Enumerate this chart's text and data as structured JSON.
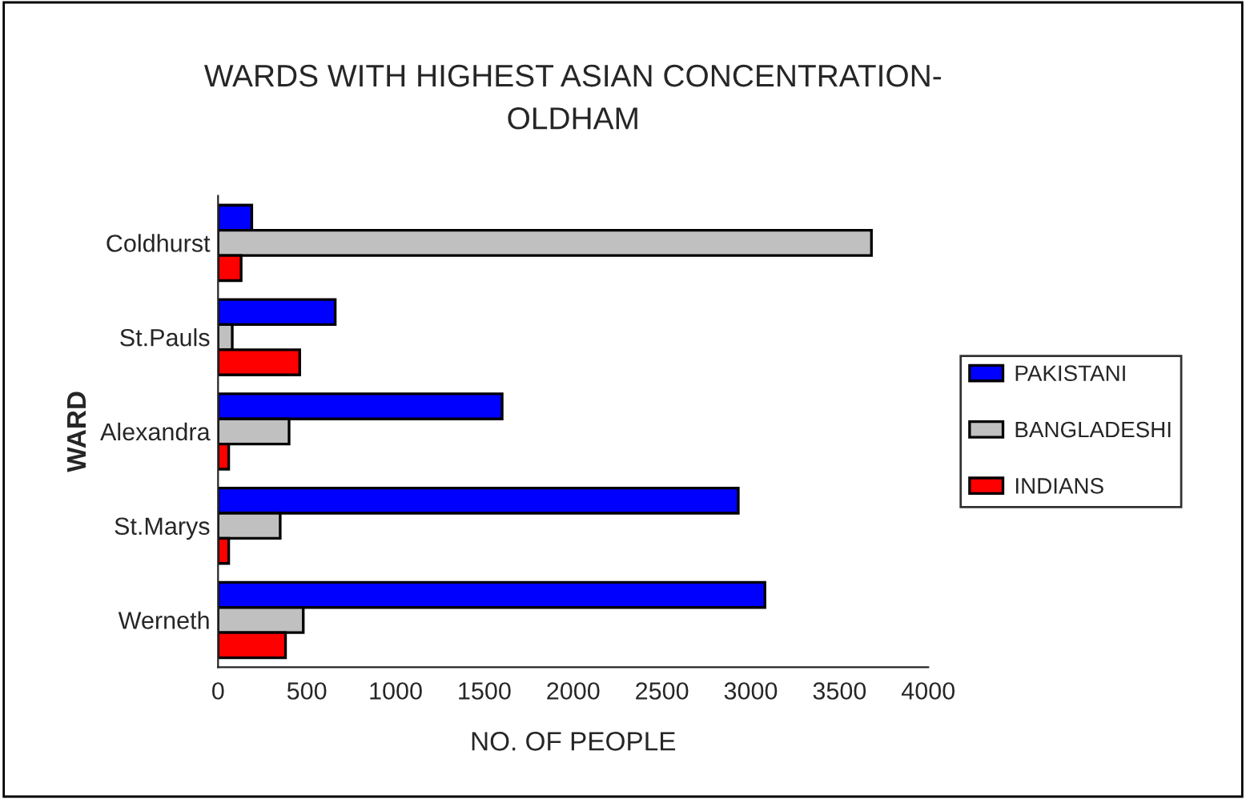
{
  "chart_data": {
    "type": "bar",
    "orientation": "horizontal",
    "title": "WARDS WITH HIGHEST ASIAN CONCENTRATION-\nOLDHAM",
    "xlabel": "NO. OF PEOPLE",
    "ylabel": "WARD",
    "categories": [
      "Coldhurst",
      "St.Pauls",
      "Alexandra",
      "St.Marys",
      "Werneth"
    ],
    "series": [
      {
        "name": "PAKISTANI",
        "color": "#0000ff",
        "values": [
          190,
          660,
          1600,
          2930,
          3080
        ]
      },
      {
        "name": "BANGLADESHI",
        "color": "#c0c0c0",
        "values": [
          3680,
          80,
          400,
          350,
          480
        ]
      },
      {
        "name": "INDIANS",
        "color": "#ff0000",
        "values": [
          130,
          460,
          60,
          60,
          380
        ]
      }
    ],
    "xlim": [
      0,
      4000
    ],
    "xticks": [
      0,
      500,
      1000,
      1500,
      2000,
      2500,
      3000,
      3500,
      4000
    ],
    "grid": false,
    "legend": "right"
  }
}
